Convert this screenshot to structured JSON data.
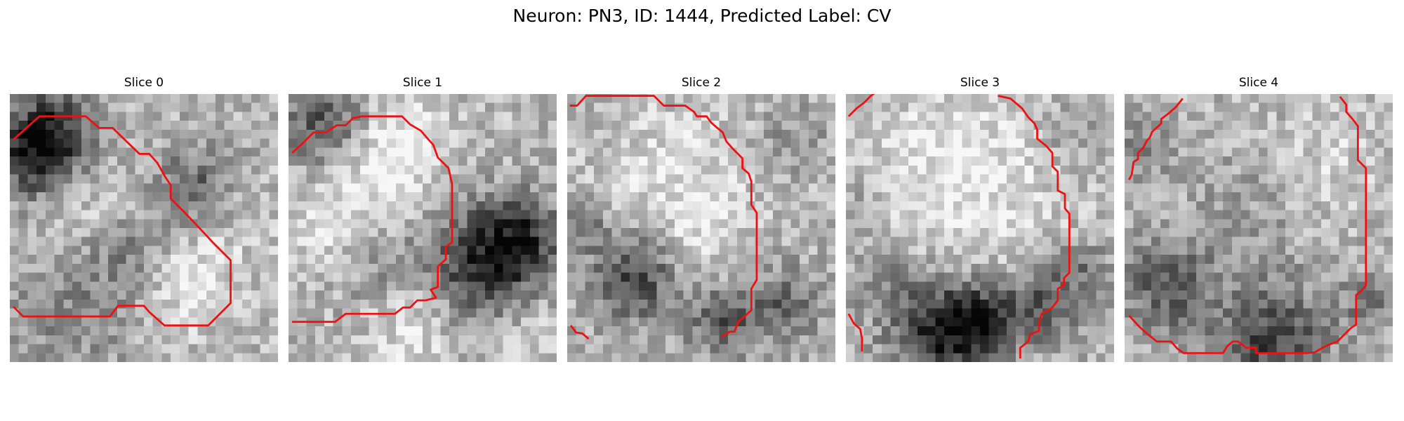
{
  "figure": {
    "title": "Neuron: PN3, ID: 1444, Predicted Label: CV"
  },
  "panels": [
    {
      "title": "Slice 0",
      "seed": 11,
      "blobs": [
        {
          "cx": 4,
          "cy": 3.5,
          "r": 3.5,
          "v": -0.5
        },
        {
          "cx": 2,
          "cy": 7,
          "r": 3,
          "v": -0.4
        },
        {
          "cx": 21,
          "cy": 10,
          "r": 3.5,
          "v": -0.35
        },
        {
          "cx": 19,
          "cy": 20,
          "r": 4,
          "v": 0.25
        },
        {
          "cx": 14,
          "cy": 18,
          "r": 3.5,
          "v": -0.25
        },
        {
          "cx": 6,
          "cy": 24,
          "r": 5,
          "v": -0.2
        },
        {
          "cx": 25,
          "cy": 12,
          "r": 3,
          "v": 0.15
        },
        {
          "cx": 9,
          "cy": 12,
          "r": 3,
          "v": 0.1
        }
      ],
      "contours": [
        [
          [
            0.4,
            5.1
          ],
          [
            3.3,
            2.5
          ],
          [
            8.5,
            2.5
          ],
          [
            10,
            3.8
          ],
          [
            11.5,
            3.8
          ],
          [
            14.5,
            6.7
          ],
          [
            15.6,
            6.7
          ],
          [
            16.5,
            7.7
          ],
          [
            17.4,
            9.3
          ],
          [
            18,
            10.2
          ],
          [
            18,
            11.7
          ],
          [
            19.6,
            13.3
          ],
          [
            21.4,
            15.2
          ],
          [
            22.7,
            16.6
          ],
          [
            24.7,
            18.6
          ],
          [
            24.7,
            23.4
          ],
          [
            22.2,
            25.9
          ],
          [
            20.6,
            25.9
          ],
          [
            19,
            25.9
          ],
          [
            17.3,
            25.9
          ],
          [
            15.6,
            24.4
          ],
          [
            15,
            23.7
          ],
          [
            12.1,
            23.7
          ],
          [
            11.2,
            24.9
          ],
          [
            1.5,
            24.9
          ],
          [
            0.4,
            23.8
          ]
        ]
      ]
    },
    {
      "title": "Slice 1",
      "seed": 23,
      "blobs": [
        {
          "cx": 4,
          "cy": 3,
          "r": 3.5,
          "v": -0.45
        },
        {
          "cx": 22,
          "cy": 18.5,
          "r": 4.5,
          "v": -0.6
        },
        {
          "cx": 26,
          "cy": 15,
          "r": 3,
          "v": -0.3
        },
        {
          "cx": 10,
          "cy": 6,
          "r": 4.5,
          "v": 0.3
        },
        {
          "cx": 10,
          "cy": 20,
          "r": 3.5,
          "v": -0.15
        },
        {
          "cx": 4,
          "cy": 14,
          "r": 3.5,
          "v": 0.15
        },
        {
          "cx": 13,
          "cy": 25,
          "r": 3.5,
          "v": 0.2
        },
        {
          "cx": 26,
          "cy": 25,
          "r": 3.5,
          "v": 0.15
        }
      ],
      "contours": [
        [
          [
            0.4,
            6.6
          ],
          [
            1.6,
            5.5
          ],
          [
            2.8,
            4.3
          ],
          [
            4.2,
            4.3
          ],
          [
            5.4,
            3.5
          ],
          [
            6.4,
            3.5
          ],
          [
            7.2,
            2.7
          ],
          [
            8.2,
            2.5
          ],
          [
            12.7,
            2.5
          ],
          [
            13.6,
            3.4
          ],
          [
            14.8,
            4.1
          ],
          [
            15.4,
            4.8
          ],
          [
            16.2,
            5.7
          ],
          [
            16.7,
            7.1
          ],
          [
            17.9,
            8.3
          ],
          [
            18.3,
            10.1
          ],
          [
            18.3,
            16.6
          ],
          [
            17.6,
            17.1
          ],
          [
            17.6,
            18.5
          ],
          [
            16.7,
            19.3
          ],
          [
            16.7,
            21.6
          ],
          [
            15.9,
            21.9
          ],
          [
            16.5,
            22.8
          ],
          [
            15.3,
            23.1
          ],
          [
            14.4,
            23.1
          ],
          [
            13.6,
            23.9
          ],
          [
            12.8,
            23.9
          ],
          [
            11.9,
            24.6
          ],
          [
            6.4,
            24.6
          ],
          [
            5.2,
            25.5
          ],
          [
            0.4,
            25.5
          ]
        ]
      ]
    },
    {
      "title": "Slice 2",
      "seed": 37,
      "blobs": [
        {
          "cx": 7,
          "cy": 20,
          "r": 3.5,
          "v": -0.45
        },
        {
          "cx": 1,
          "cy": 14,
          "r": 2,
          "v": -0.3
        },
        {
          "cx": 17,
          "cy": 25,
          "r": 3,
          "v": -0.35
        },
        {
          "cx": 24,
          "cy": 23,
          "r": 3,
          "v": -0.3
        },
        {
          "cx": 12,
          "cy": 9,
          "r": 6,
          "v": 0.15
        },
        {
          "cx": 25,
          "cy": 4,
          "r": 3,
          "v": -0.15
        },
        {
          "cx": 14,
          "cy": 16,
          "r": 3,
          "v": 0.1
        }
      ],
      "contours": [
        [
          [
            0.3,
            1.3
          ],
          [
            1.1,
            1.3
          ],
          [
            2.1,
            0.2
          ],
          [
            9.7,
            0.2
          ],
          [
            10.8,
            1.3
          ],
          [
            13.2,
            1.3
          ],
          [
            14.2,
            2.0
          ],
          [
            14.5,
            2.5
          ],
          [
            15.6,
            2.5
          ],
          [
            16.1,
            3.2
          ],
          [
            16.8,
            3.8
          ],
          [
            17.4,
            4.3
          ],
          [
            17.8,
            5.3
          ],
          [
            18.5,
            6.1
          ],
          [
            19.6,
            7.2
          ],
          [
            19.6,
            8.3
          ],
          [
            20.3,
            8.9
          ],
          [
            20.6,
            9.8
          ],
          [
            20.6,
            12.4
          ],
          [
            21.2,
            13.3
          ],
          [
            21.2,
            20.8
          ],
          [
            20.6,
            21.8
          ],
          [
            20.6,
            24.2
          ],
          [
            19.5,
            25.2
          ],
          [
            19.2,
            25.4
          ],
          [
            18.7,
            26.6
          ],
          [
            18.2,
            26.6
          ],
          [
            17.2,
            27.2
          ]
        ],
        [
          [
            0.4,
            25.9
          ],
          [
            1.0,
            26.7
          ],
          [
            1.7,
            26.8
          ],
          [
            2.4,
            27.4
          ]
        ]
      ]
    },
    {
      "title": "Slice 3",
      "seed": 53,
      "blobs": [
        {
          "cx": 10,
          "cy": 26,
          "r": 4,
          "v": -0.55
        },
        {
          "cx": 15,
          "cy": 25,
          "r": 3,
          "v": -0.45
        },
        {
          "cx": 22,
          "cy": 23,
          "r": 3,
          "v": -0.35
        },
        {
          "cx": 4,
          "cy": 20,
          "r": 3,
          "v": -0.2
        },
        {
          "cx": 26,
          "cy": 19,
          "r": 2.5,
          "v": -0.2
        },
        {
          "cx": 12,
          "cy": 9,
          "r": 8,
          "v": 0.2
        },
        {
          "cx": 25,
          "cy": 4,
          "r": 2.5,
          "v": -0.15
        },
        {
          "cx": 1,
          "cy": 12,
          "r": 2,
          "v": -0.15
        }
      ],
      "contours": [
        [
          [
            0.3,
            2.5
          ],
          [
            1.2,
            1.6
          ],
          [
            2.0,
            1.0
          ],
          [
            2.8,
            0.2
          ],
          [
            3.6,
            -0.4
          ]
        ],
        [
          [
            17.0,
            0.2
          ],
          [
            17.5,
            0.3
          ],
          [
            18.4,
            0.5
          ],
          [
            19.7,
            1.6
          ],
          [
            20.4,
            2.6
          ],
          [
            21.1,
            3.3
          ],
          [
            21.4,
            4.0
          ],
          [
            21.4,
            5.0
          ],
          [
            22.4,
            5.8
          ],
          [
            23.1,
            6.6
          ],
          [
            23.1,
            8.1
          ],
          [
            23.7,
            8.7
          ],
          [
            23.7,
            10.8
          ],
          [
            24.5,
            11.2
          ],
          [
            24.5,
            12.8
          ],
          [
            25.0,
            13.4
          ],
          [
            25.0,
            20.0
          ],
          [
            24.4,
            20.6
          ],
          [
            24.4,
            21.4
          ],
          [
            23.7,
            21.8
          ],
          [
            23.7,
            23.1
          ],
          [
            23.0,
            24.0
          ],
          [
            21.9,
            24.6
          ],
          [
            21.6,
            25.6
          ],
          [
            21.6,
            26.5
          ],
          [
            20.6,
            26.9
          ],
          [
            20.4,
            27.7
          ],
          [
            19.5,
            28.4
          ],
          [
            19.5,
            29.6
          ]
        ],
        [
          [
            0.3,
            24.6
          ],
          [
            0.9,
            25.7
          ],
          [
            1.6,
            26.3
          ],
          [
            1.8,
            27.4
          ],
          [
            1.8,
            28.8
          ]
        ]
      ]
    },
    {
      "title": "Slice 4",
      "seed": 71,
      "blobs": [
        {
          "cx": 16,
          "cy": 27,
          "r": 4.5,
          "v": -0.45
        },
        {
          "cx": 4,
          "cy": 21,
          "r": 3.5,
          "v": -0.4
        },
        {
          "cx": 1,
          "cy": 6,
          "r": 2.5,
          "v": -0.2
        },
        {
          "cx": 13,
          "cy": 13,
          "r": 5,
          "v": -0.1
        },
        {
          "cx": 22,
          "cy": 7,
          "r": 4,
          "v": 0.12
        },
        {
          "cx": 27,
          "cy": 23,
          "r": 2.5,
          "v": -0.2
        }
      ],
      "contours": [
        [
          [
            0.5,
            9.6
          ],
          [
            0.8,
            9.0
          ],
          [
            1.0,
            7.6
          ],
          [
            1.5,
            7.3
          ],
          [
            1.5,
            6.6
          ],
          [
            2.1,
            6.0
          ],
          [
            2.5,
            5.2
          ],
          [
            2.8,
            4.9
          ],
          [
            3.1,
            4.2
          ],
          [
            4.1,
            3.3
          ],
          [
            4.1,
            2.8
          ],
          [
            5.0,
            2.1
          ],
          [
            5.7,
            1.5
          ],
          [
            6.5,
            0.5
          ]
        ],
        [
          [
            24.1,
            0.3
          ],
          [
            24.8,
            1.2
          ],
          [
            24.8,
            2.0
          ],
          [
            25.5,
            2.8
          ],
          [
            26.1,
            3.6
          ],
          [
            26.1,
            7.4
          ],
          [
            27.0,
            8.3
          ],
          [
            27.0,
            21.4
          ],
          [
            26.4,
            22.1
          ],
          [
            25.9,
            22.5
          ],
          [
            25.9,
            25.8
          ],
          [
            25.3,
            26.2
          ],
          [
            24.4,
            27.1
          ],
          [
            23.8,
            27.7
          ],
          [
            22.5,
            28.2
          ],
          [
            21.3,
            28.9
          ],
          [
            20.3,
            29.0
          ],
          [
            18.8,
            29.0
          ],
          [
            14.7,
            29.0
          ],
          [
            14.7,
            28.4
          ],
          [
            13.6,
            28.4
          ],
          [
            12.7,
            27.7
          ],
          [
            12.1,
            27.7
          ],
          [
            11.5,
            28.2
          ],
          [
            11.0,
            29.0
          ],
          [
            6.6,
            29.0
          ],
          [
            5.9,
            28.5
          ],
          [
            5.2,
            27.7
          ],
          [
            3.6,
            27.7
          ],
          [
            2.6,
            26.9
          ],
          [
            1.7,
            26.1
          ],
          [
            0.5,
            24.8
          ]
        ]
      ]
    }
  ]
}
